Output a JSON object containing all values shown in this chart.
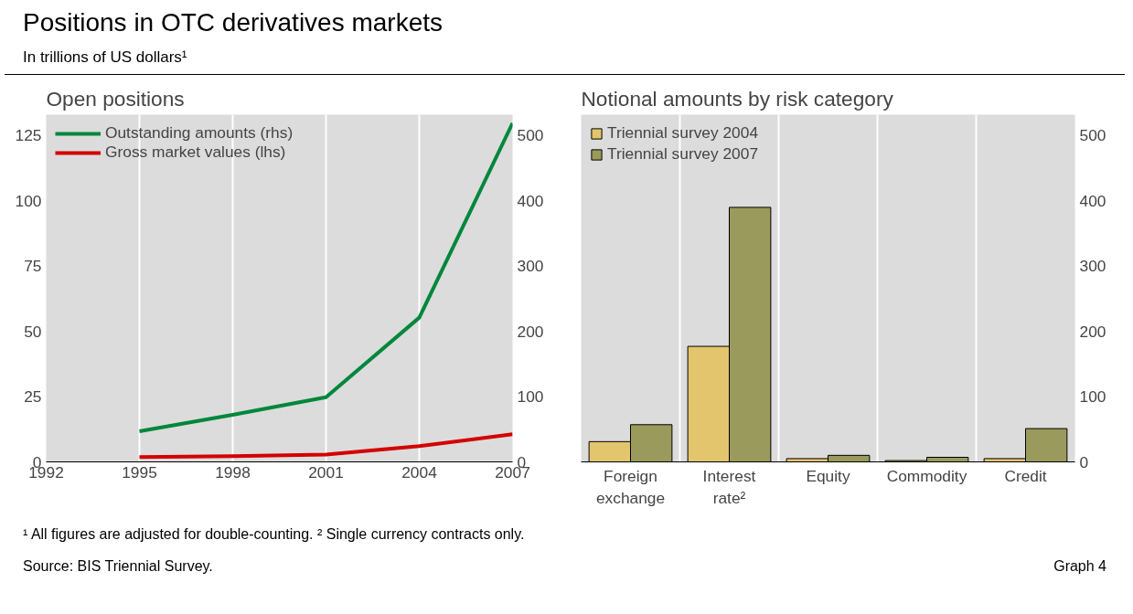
{
  "chart_data": [
    {
      "type": "other",
      "title": "Positions in OTC derivatives markets",
      "subtitle": "In trillions of US dollars¹",
      "annotations": [
        "¹ All figures are adjusted for double-counting.   ² Single currency contracts only.",
        "Source: BIS Triennial Survey.",
        "Graph 4"
      ]
    },
    {
      "type": "line",
      "title": "Open positions",
      "x": [
        1995,
        1998,
        2001,
        2004,
        2007
      ],
      "xlim": [
        1992,
        2007
      ],
      "xticks": [
        1992,
        1995,
        1998,
        2001,
        2004,
        2007
      ],
      "ylim": [
        0,
        133
      ],
      "yticks": [
        0,
        25,
        50,
        75,
        100,
        125
      ],
      "y2lim": [
        0,
        532
      ],
      "y2ticks": [
        0,
        100,
        200,
        300,
        400,
        500
      ],
      "grid": "x",
      "legend": "top left",
      "series": [
        {
          "name": "Outstanding amounts (rhs)",
          "color": "#00873c",
          "axis": "y2",
          "values": [
            47,
            72,
            99,
            221,
            519
          ]
        },
        {
          "name": "Gross market values (lhs)",
          "color": "#d40000",
          "values": [
            1.8,
            2.2,
            2.8,
            6.0,
            10.6
          ]
        }
      ]
    },
    {
      "type": "bar",
      "title": "Notional amounts by risk category",
      "categories": [
        "Foreign exchange",
        "Interest rate²",
        "Equity",
        "Commodity",
        "Credit"
      ],
      "ylim": [
        0,
        532
      ],
      "yticks": [
        0,
        100,
        200,
        300,
        400,
        500
      ],
      "grid": "x",
      "legend": "top left",
      "series": [
        {
          "name": "Triennial survey 2004",
          "color": "#e3c56e",
          "values": [
            31,
            177,
            5,
            2,
            5
          ]
        },
        {
          "name": "Triennial survey 2007",
          "color": "#999a5b",
          "values": [
            57,
            390,
            10,
            7,
            51
          ]
        }
      ]
    }
  ]
}
